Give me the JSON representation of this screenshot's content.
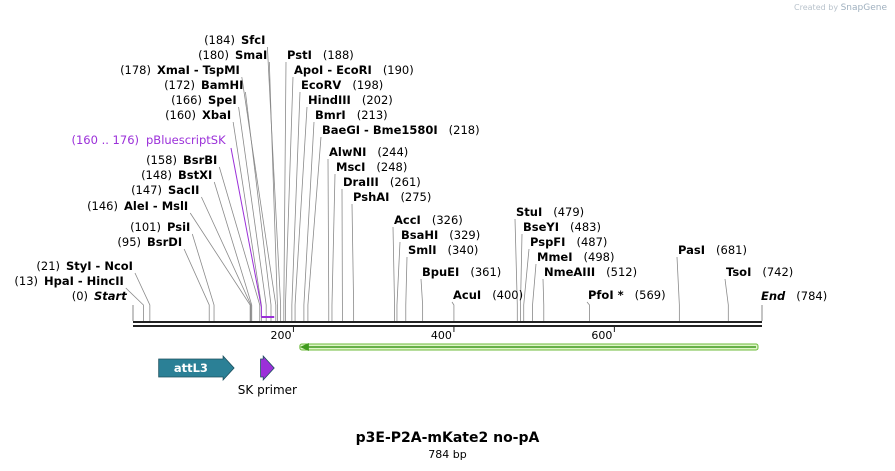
{
  "header": {
    "watermark_prefix": "Created by",
    "watermark_brand": "SnapGene"
  },
  "map": {
    "name": "p3E-P2A-mKate2 no-pA",
    "length_label": "784 bp",
    "length": 784,
    "ticks": [
      200,
      400,
      600
    ],
    "sites": [
      {
        "id": "start",
        "label": "Start",
        "pos": 0,
        "pos_label": "(0)",
        "style": "italic"
      },
      {
        "id": "hpaI",
        "label": "HpaI  - HincII",
        "pos": 13,
        "pos_label": "(13)"
      },
      {
        "id": "styI",
        "label": "StyI  - NcoI",
        "pos": 21,
        "pos_label": "(21)"
      },
      {
        "id": "bsrDI",
        "label": "BsrDI",
        "pos": 95,
        "pos_label": "(95)"
      },
      {
        "id": "psiI",
        "label": "PsiI",
        "pos": 101,
        "pos_label": "(101)"
      },
      {
        "id": "aleI",
        "label": "AleI  - MslI",
        "pos": 146,
        "pos_label": "(146)"
      },
      {
        "id": "sacII",
        "label": "SacII",
        "pos": 147,
        "pos_label": "(147)"
      },
      {
        "id": "bstXI",
        "label": "BstXI",
        "pos": 148,
        "pos_label": "(148)"
      },
      {
        "id": "bsrBI",
        "label": "BsrBI",
        "pos": 158,
        "pos_label": "(158)"
      },
      {
        "id": "xbaI",
        "label": "XbaI",
        "pos": 160,
        "pos_label": "(160)"
      },
      {
        "id": "speI",
        "label": "SpeI",
        "pos": 166,
        "pos_label": "(166)"
      },
      {
        "id": "bamHI",
        "label": "BamHI",
        "pos": 172,
        "pos_label": "(172)"
      },
      {
        "id": "xmaI",
        "label": "XmaI  - TspMI",
        "pos": 178,
        "pos_label": "(178)"
      },
      {
        "id": "smaI",
        "label": "SmaI",
        "pos": 180,
        "pos_label": "(180)"
      },
      {
        "id": "sfcI",
        "label": "SfcI",
        "pos": 184,
        "pos_label": "(184)"
      },
      {
        "id": "pstI",
        "label": "PstI",
        "pos": 188,
        "pos_label": "(188)"
      },
      {
        "id": "apoI",
        "label": "ApoI  - EcoRI",
        "pos": 190,
        "pos_label": "(190)"
      },
      {
        "id": "ecoRV",
        "label": "EcoRV",
        "pos": 198,
        "pos_label": "(198)"
      },
      {
        "id": "hindIII",
        "label": "HindIII",
        "pos": 202,
        "pos_label": "(202)"
      },
      {
        "id": "bmrI",
        "label": "BmrI",
        "pos": 213,
        "pos_label": "(213)"
      },
      {
        "id": "baeGI",
        "label": "BaeGI  - Bme1580I",
        "pos": 218,
        "pos_label": "(218)"
      },
      {
        "id": "alwNI",
        "label": "AlwNI",
        "pos": 244,
        "pos_label": "(244)"
      },
      {
        "id": "mscI",
        "label": "MscI",
        "pos": 248,
        "pos_label": "(248)"
      },
      {
        "id": "draIII",
        "label": "DraIII",
        "pos": 261,
        "pos_label": "(261)"
      },
      {
        "id": "pshAI",
        "label": "PshAI",
        "pos": 275,
        "pos_label": "(275)"
      },
      {
        "id": "accI",
        "label": "AccI",
        "pos": 326,
        "pos_label": "(326)"
      },
      {
        "id": "bsaHI",
        "label": "BsaHI",
        "pos": 329,
        "pos_label": "(329)"
      },
      {
        "id": "smlI",
        "label": "SmlI",
        "pos": 340,
        "pos_label": "(340)"
      },
      {
        "id": "bpuEI",
        "label": "BpuEI",
        "pos": 361,
        "pos_label": "(361)"
      },
      {
        "id": "acuI",
        "label": "AcuI",
        "pos": 400,
        "pos_label": "(400)"
      },
      {
        "id": "stuI",
        "label": "StuI",
        "pos": 479,
        "pos_label": "(479)"
      },
      {
        "id": "bseYI",
        "label": "BseYI",
        "pos": 483,
        "pos_label": "(483)"
      },
      {
        "id": "pspFI",
        "label": "PspFI",
        "pos": 487,
        "pos_label": "(487)"
      },
      {
        "id": "mmeI",
        "label": "MmeI",
        "pos": 498,
        "pos_label": "(498)"
      },
      {
        "id": "nmeAIII",
        "label": "NmeAIII",
        "pos": 512,
        "pos_label": "(512)"
      },
      {
        "id": "pfoI",
        "label": "PfoI *",
        "pos": 569,
        "pos_label": "(569)"
      },
      {
        "id": "pasI",
        "label": "PasI",
        "pos": 681,
        "pos_label": "(681)"
      },
      {
        "id": "tsoI",
        "label": "TsoI",
        "pos": 742,
        "pos_label": "(742)"
      },
      {
        "id": "end",
        "label": "End",
        "pos": 784,
        "pos_label": "(784)",
        "style": "italic"
      }
    ],
    "primer_binding": {
      "label": "pBluescriptSK",
      "range_label": "(160 .. 176)",
      "start": 160,
      "end": 176,
      "color": "#9b30d9"
    },
    "features": [
      {
        "id": "attL3",
        "label": "attL3",
        "start": 32,
        "end": 126,
        "direction": "forward",
        "color": "#2b8096",
        "label_inside": true
      },
      {
        "id": "sk-primer",
        "label": "SK primer",
        "start": 159,
        "end": 176,
        "direction": "forward",
        "color": "#9b30d9",
        "label_inside": false
      },
      {
        "id": "orf",
        "label": "",
        "start": 208,
        "end": 779,
        "direction": "reverse",
        "color": "#6dbb3a",
        "label_inside": false
      }
    ]
  }
}
